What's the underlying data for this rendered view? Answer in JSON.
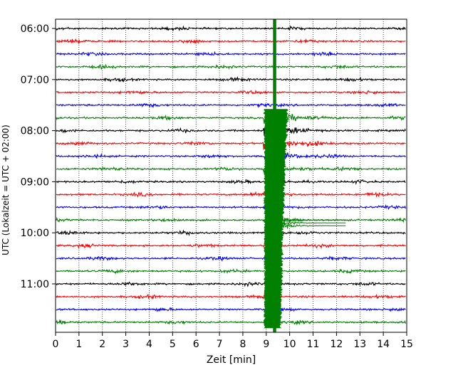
{
  "chart_data": {
    "type": "line",
    "title": "",
    "xlabel": "Zeit  [min]",
    "ylabel": "UTC (Lokalzeit = UTC + 02:00)",
    "xlim": [
      0,
      15
    ],
    "x_ticks": [
      "0",
      "1",
      "2",
      "3",
      "4",
      "5",
      "6",
      "7",
      "8",
      "9",
      "10",
      "11",
      "12",
      "13",
      "14",
      "15"
    ],
    "y_ticks": [
      "06:00",
      "07:00",
      "08:00",
      "09:00",
      "10:00",
      "11:00"
    ],
    "y_tick_rows": [
      0,
      4,
      8,
      12,
      16,
      20
    ],
    "grid": "vertical-dotted",
    "trace_interval_min": 15,
    "trace_start": "06:00",
    "trace_count": 24,
    "trace_colors": [
      "#000000",
      "#ff0000",
      "#0000ff",
      "#008000"
    ],
    "event": {
      "onset_min": 9.0,
      "center_min": 9.35,
      "peak_rows": [
        7,
        17
      ],
      "coda_end_min": 12.4
    }
  }
}
